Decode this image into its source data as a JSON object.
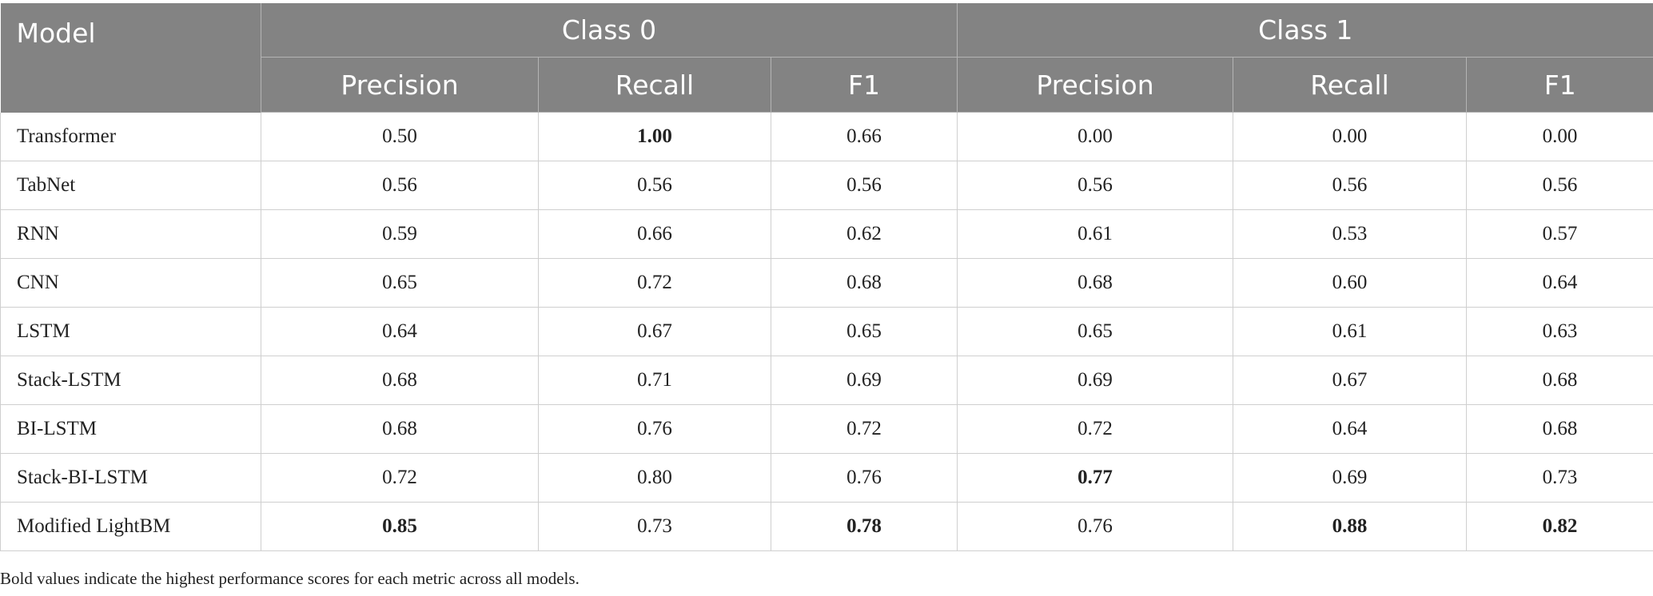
{
  "table": {
    "model_header": "Model",
    "groups": [
      "Class 0",
      "Class 1"
    ],
    "metrics": [
      "Precision",
      "Recall",
      "F1",
      "Precision",
      "Recall",
      "F1"
    ],
    "rows": [
      {
        "model": "Transformer",
        "values": [
          "0.50",
          "1.00",
          "0.66",
          "0.00",
          "0.00",
          "0.00"
        ],
        "bold": [
          false,
          true,
          false,
          false,
          false,
          false
        ]
      },
      {
        "model": "TabNet",
        "values": [
          "0.56",
          "0.56",
          "0.56",
          "0.56",
          "0.56",
          "0.56"
        ],
        "bold": [
          false,
          false,
          false,
          false,
          false,
          false
        ]
      },
      {
        "model": "RNN",
        "values": [
          "0.59",
          "0.66",
          "0.62",
          "0.61",
          "0.53",
          "0.57"
        ],
        "bold": [
          false,
          false,
          false,
          false,
          false,
          false
        ]
      },
      {
        "model": "CNN",
        "values": [
          "0.65",
          "0.72",
          "0.68",
          "0.68",
          "0.60",
          "0.64"
        ],
        "bold": [
          false,
          false,
          false,
          false,
          false,
          false
        ]
      },
      {
        "model": "LSTM",
        "values": [
          "0.64",
          "0.67",
          "0.65",
          "0.65",
          "0.61",
          "0.63"
        ],
        "bold": [
          false,
          false,
          false,
          false,
          false,
          false
        ]
      },
      {
        "model": "Stack-LSTM",
        "values": [
          "0.68",
          "0.71",
          "0.69",
          "0.69",
          "0.67",
          "0.68"
        ],
        "bold": [
          false,
          false,
          false,
          false,
          false,
          false
        ]
      },
      {
        "model": "BI-LSTM",
        "values": [
          "0.68",
          "0.76",
          "0.72",
          "0.72",
          "0.64",
          "0.68"
        ],
        "bold": [
          false,
          false,
          false,
          false,
          false,
          false
        ]
      },
      {
        "model": "Stack-BI-LSTM",
        "values": [
          "0.72",
          "0.80",
          "0.76",
          "0.77",
          "0.69",
          "0.73"
        ],
        "bold": [
          false,
          false,
          false,
          true,
          false,
          false
        ]
      },
      {
        "model": "Modified LightBM",
        "values": [
          "0.85",
          "0.73",
          "0.78",
          "0.76",
          "0.88",
          "0.82"
        ],
        "bold": [
          true,
          false,
          true,
          false,
          true,
          true
        ]
      }
    ]
  },
  "footnote": "Bold values indicate the highest performance scores for each metric across all models.",
  "colors": {
    "header_bg": "#838383",
    "header_text": "#ffffff",
    "body_text": "#222222",
    "grid": "#cfcfcf"
  }
}
